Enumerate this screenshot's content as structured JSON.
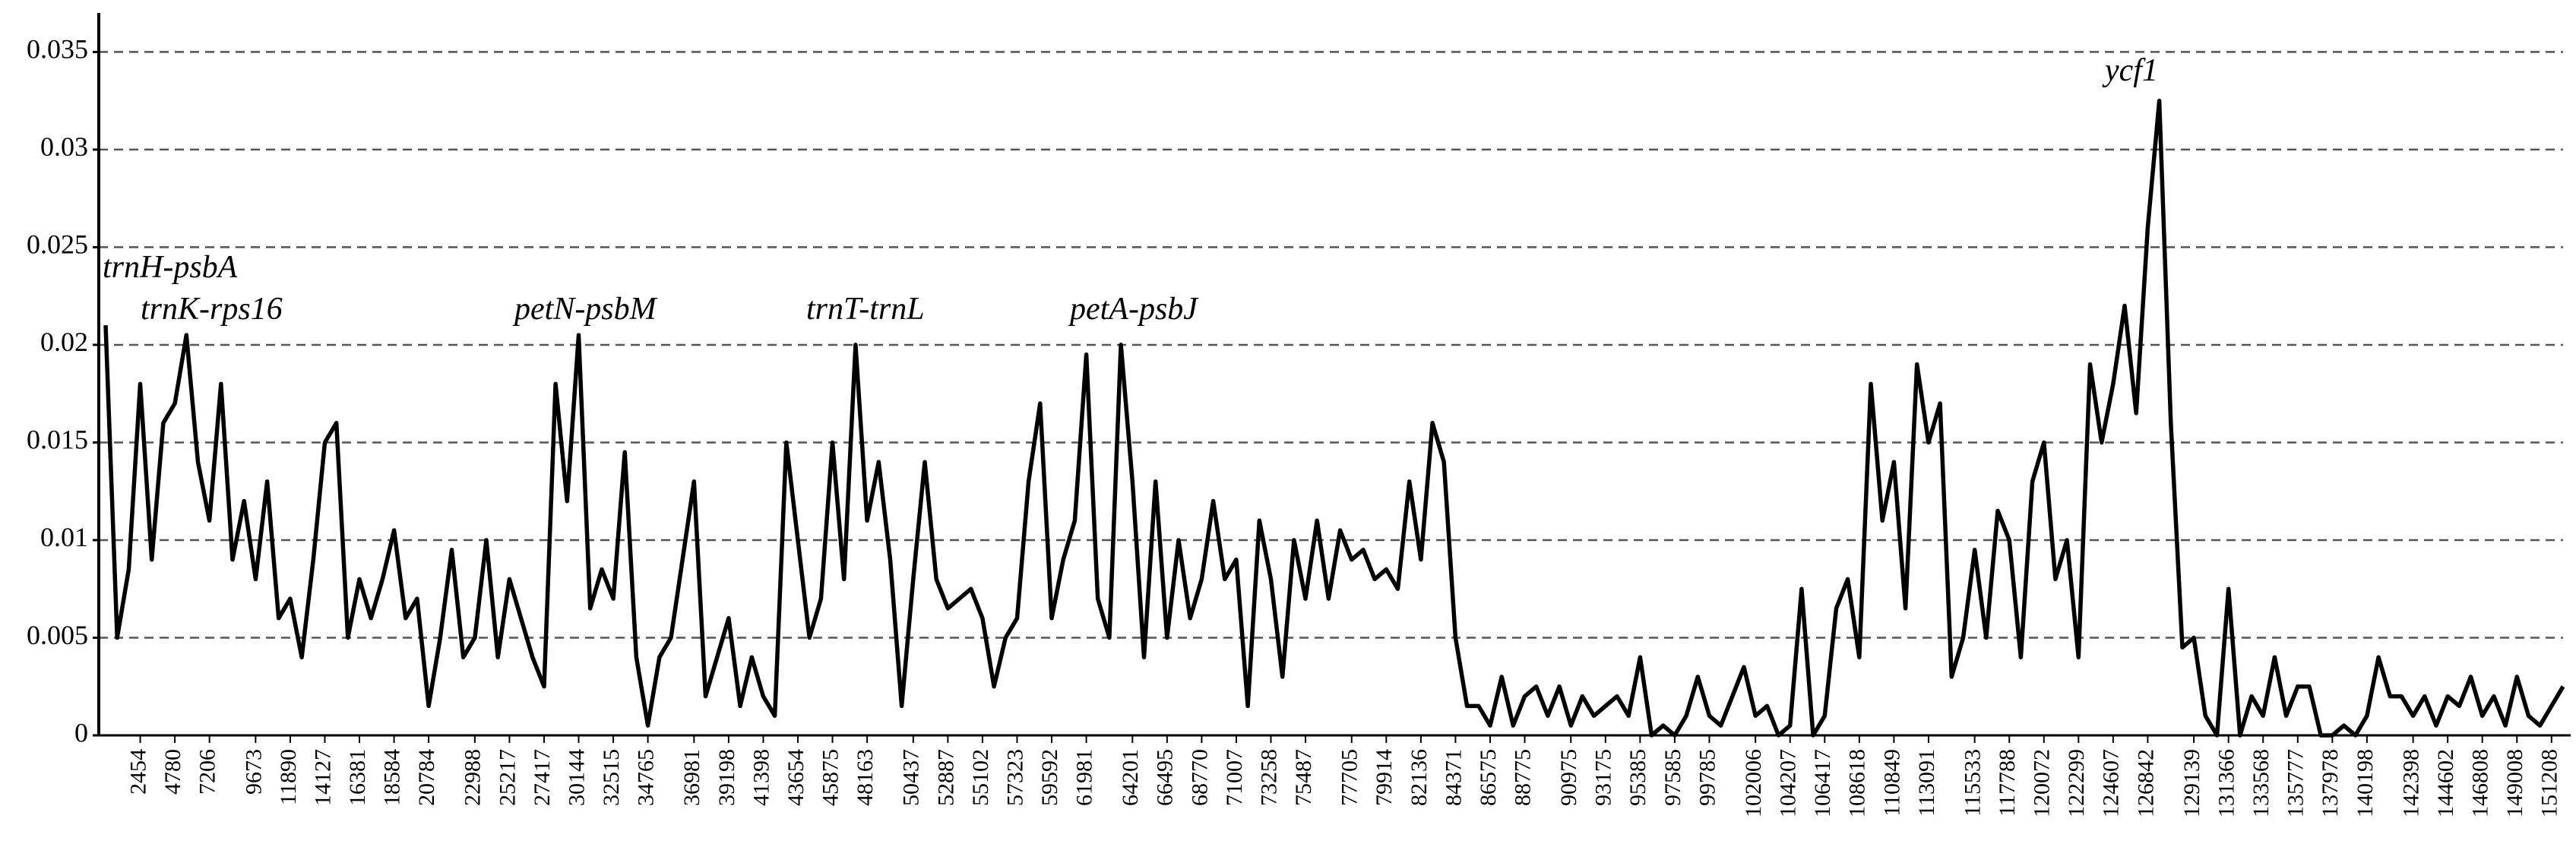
{
  "chart_data": {
    "type": "line",
    "categories": [
      null,
      null,
      null,
      "2454",
      null,
      null,
      "4780",
      null,
      null,
      "7206",
      null,
      null,
      null,
      "9673",
      null,
      null,
      "11890",
      null,
      null,
      "14127",
      null,
      null,
      "16381",
      null,
      null,
      "18584",
      null,
      null,
      "20784",
      null,
      null,
      null,
      "22988",
      null,
      null,
      "25217",
      null,
      null,
      "27417",
      null,
      null,
      "30144",
      null,
      null,
      "32515",
      null,
      null,
      "34765",
      null,
      null,
      null,
      "36981",
      null,
      null,
      "39198",
      null,
      null,
      "41398",
      null,
      null,
      "43654",
      null,
      null,
      "45875",
      null,
      null,
      "48163",
      null,
      null,
      null,
      "50437",
      null,
      null,
      "52887",
      null,
      null,
      "55102",
      null,
      null,
      "57323",
      null,
      null,
      "59592",
      null,
      null,
      "61981",
      null,
      null,
      null,
      "64201",
      null,
      null,
      "66495",
      null,
      null,
      "68770",
      null,
      null,
      "71007",
      null,
      null,
      "73258",
      null,
      null,
      "75487",
      null,
      null,
      null,
      "77705",
      null,
      null,
      "79914",
      null,
      null,
      "82136",
      null,
      null,
      "84371",
      null,
      null,
      "86575",
      null,
      null,
      "88775",
      null,
      null,
      null,
      "90975",
      null,
      null,
      "93175",
      null,
      null,
      "95385",
      null,
      null,
      "97585",
      null,
      null,
      "99785",
      null,
      null,
      null,
      "102006",
      null,
      null,
      "104207",
      null,
      null,
      "106417",
      null,
      null,
      "108618",
      null,
      null,
      "110849",
      null,
      null,
      "113091",
      null,
      null,
      null,
      "115533",
      null,
      null,
      "117788",
      null,
      null,
      "120072",
      null,
      null,
      "122299",
      null,
      null,
      "124607",
      null,
      null,
      "126842",
      null,
      null,
      null,
      "129139",
      null,
      null,
      "131366",
      null,
      null,
      "133568",
      null,
      null,
      "135777",
      null,
      null,
      "137978",
      null,
      null,
      "140198",
      null,
      null,
      null,
      "142398",
      null,
      null,
      "144602",
      null,
      null,
      "146808",
      null,
      null,
      "149008",
      null,
      null,
      "151208",
      null
    ],
    "values": [
      0.021,
      0.005,
      0.0085,
      0.018,
      0.009,
      0.016,
      0.017,
      0.0205,
      0.014,
      0.011,
      0.018,
      0.009,
      0.012,
      0.008,
      0.013,
      0.006,
      0.007,
      0.004,
      0.009,
      0.015,
      0.016,
      0.005,
      0.008,
      0.006,
      0.008,
      0.0105,
      0.006,
      0.007,
      0.0015,
      0.005,
      0.0095,
      0.004,
      0.005,
      0.01,
      0.004,
      0.008,
      0.006,
      0.004,
      0.0025,
      0.018,
      0.012,
      0.0205,
      0.0065,
      0.0085,
      0.007,
      0.0145,
      0.004,
      0.0005,
      0.004,
      0.005,
      0.009,
      0.013,
      0.002,
      0.004,
      0.006,
      0.0015,
      0.004,
      0.002,
      0.001,
      0.015,
      0.01,
      0.005,
      0.007,
      0.015,
      0.008,
      0.02,
      0.011,
      0.014,
      0.009,
      0.0015,
      0.008,
      0.014,
      0.008,
      0.0065,
      0.007,
      0.0075,
      0.006,
      0.0025,
      0.005,
      0.006,
      0.013,
      0.017,
      0.006,
      0.009,
      0.011,
      0.0195,
      0.007,
      0.005,
      0.02,
      0.013,
      0.004,
      0.013,
      0.005,
      0.01,
      0.006,
      0.008,
      0.012,
      0.008,
      0.009,
      0.0015,
      0.011,
      0.008,
      0.003,
      0.01,
      0.007,
      0.011,
      0.007,
      0.0105,
      0.009,
      0.0095,
      0.008,
      0.0085,
      0.0075,
      0.013,
      0.009,
      0.016,
      0.014,
      0.005,
      0.0015,
      0.0015,
      0.0005,
      0.003,
      0.0005,
      0.002,
      0.0025,
      0.001,
      0.0025,
      0.0005,
      0.002,
      0.001,
      0.0015,
      0.002,
      0.001,
      0.004,
      0,
      0.0005,
      0,
      0.001,
      0.003,
      0.001,
      0.0005,
      0.002,
      0.0035,
      0.001,
      0.0015,
      0,
      0.0005,
      0.0075,
      0,
      0.001,
      0.0065,
      0.008,
      0.004,
      0.018,
      0.011,
      0.014,
      0.0065,
      0.019,
      0.015,
      0.017,
      0.003,
      0.005,
      0.0095,
      0.005,
      0.0115,
      0.01,
      0.004,
      0.013,
      0.015,
      0.008,
      0.01,
      0.004,
      0.019,
      0.015,
      0.018,
      0.022,
      0.0165,
      0.026,
      0.0325,
      0.016,
      0.0045,
      0.005,
      0.001,
      0,
      0.0075,
      0,
      0.002,
      0.001,
      0.004,
      0.001,
      0.0025,
      0.0025,
      0,
      0,
      0.0005,
      0,
      0.001,
      0.004,
      0.002,
      0.002,
      0.001,
      0.002,
      0.0005,
      0.002,
      0.0015,
      0.003,
      0.001,
      0.002,
      0.0005,
      0.003,
      0.001,
      0.0005,
      0.0015,
      0.0025
    ],
    "color": "#000000",
    "ylim": [
      0,
      0.037
    ],
    "yticks": [
      0,
      0.005,
      0.01,
      0.015,
      0.02,
      0.025,
      0.03,
      0.035
    ],
    "grid": true,
    "annotations": [
      "trnH-psbA",
      "trnK-rps16",
      "petN-psbM",
      "trnT-trnL",
      "petA-psbJ",
      "ycf1"
    ]
  }
}
